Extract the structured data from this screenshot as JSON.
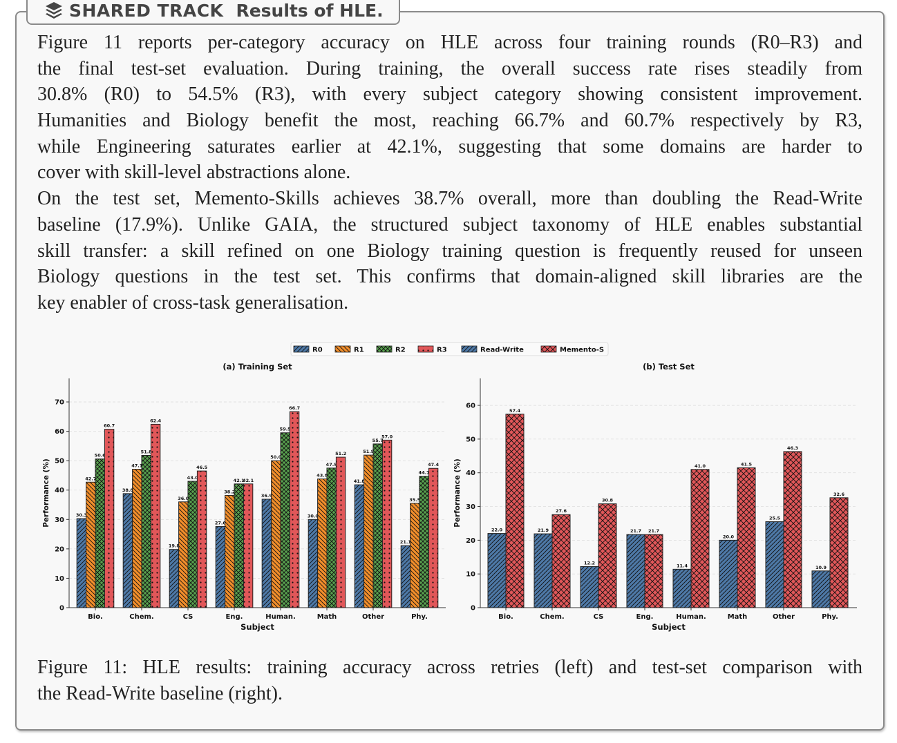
{
  "header": {
    "icon": "layers-icon",
    "track": "SHARED TRACK",
    "title": "Results of HLE."
  },
  "intro_lines": [
    "Figure 11 reports per-category accuracy on HLE across four training rounds (R0–R3) and",
    "the final test-set evaluation. During training, the overall success rate rises steadily from",
    "30.8% (R0) to 54.5% (R3), with every subject category showing consistent improvement.",
    "Humanities and Biology benefit the most, reaching 66.7% and 60.7% respectively by R3,",
    "while Engineering saturates earlier at 42.1%, suggesting that some domains are harder to",
    "cover with skill-level abstractions alone.",
    "On the test set, Memento-Skills achieves 38.7% overall, more than doubling the Read-Write",
    "baseline (17.9%). Unlike GAIA, the structured subject taxonomy of HLE enables substantial",
    "skill transfer: a skill refined on one Biology training question is frequently reused for unseen",
    "Biology questions in the test set. This confirms that domain-aligned skill libraries are the",
    "key enabler of cross-task generalisation."
  ],
  "caption_lines": [
    "Figure 11: HLE results: training accuracy across retries (left) and test-set comparison with",
    "the Read-Write baseline (right)."
  ],
  "legend": [
    {
      "label": "R0",
      "color": "#4e79a7",
      "hatch": "diag"
    },
    {
      "label": "R1",
      "color": "#f28e2b",
      "hatch": "back"
    },
    {
      "label": "R2",
      "color": "#59a14f",
      "hatch": "cross"
    },
    {
      "label": "R3",
      "color": "#e15759",
      "hatch": "dots"
    },
    {
      "label": "Read-Write",
      "color": "#4e79a7",
      "hatch": "diag"
    },
    {
      "label": "Memento-S",
      "color": "#e15759",
      "hatch": "xcross"
    }
  ],
  "chart_data": [
    {
      "type": "bar",
      "title": "(a) Training Set",
      "xlabel": "Subject",
      "ylabel": "Performance (%)",
      "ylim": [
        0,
        78
      ],
      "yticks": [
        0,
        10,
        20,
        30,
        40,
        50,
        60,
        70
      ],
      "grid": true,
      "categories": [
        "Bio.",
        "Chem.",
        "CS",
        "Eng.",
        "Human.",
        "Math",
        "Other",
        "Phy."
      ],
      "series": [
        {
          "name": "R0",
          "values": [
            30.3,
            38.8,
            19.8,
            27.6,
            36.9,
            30.0,
            41.8,
            21.1
          ]
        },
        {
          "name": "R1",
          "values": [
            42.7,
            47.1,
            36.0,
            38.2,
            50.0,
            43.8,
            51.9,
            35.5
          ]
        },
        {
          "name": "R2",
          "values": [
            50.6,
            51.8,
            43.0,
            42.1,
            59.5,
            47.5,
            55.7,
            44.7
          ]
        },
        {
          "name": "R3",
          "values": [
            60.7,
            62.4,
            46.5,
            42.1,
            66.7,
            51.2,
            57.0,
            47.4
          ]
        }
      ]
    },
    {
      "type": "bar",
      "title": "(b) Test Set",
      "xlabel": "Subject",
      "ylabel": "Performance (%)",
      "ylim": [
        0,
        68
      ],
      "yticks": [
        0,
        10,
        20,
        30,
        40,
        50,
        60
      ],
      "grid": true,
      "legend_position": "top-center",
      "categories": [
        "Bio.",
        "Chem.",
        "CS",
        "Eng.",
        "Human.",
        "Math",
        "Other",
        "Phy."
      ],
      "series": [
        {
          "name": "Read-Write",
          "values": [
            22.0,
            21.9,
            12.2,
            21.7,
            11.4,
            20.0,
            25.5,
            10.9
          ]
        },
        {
          "name": "Memento-S",
          "values": [
            57.4,
            27.6,
            30.8,
            21.7,
            41.0,
            41.5,
            46.3,
            32.6
          ]
        }
      ]
    }
  ]
}
